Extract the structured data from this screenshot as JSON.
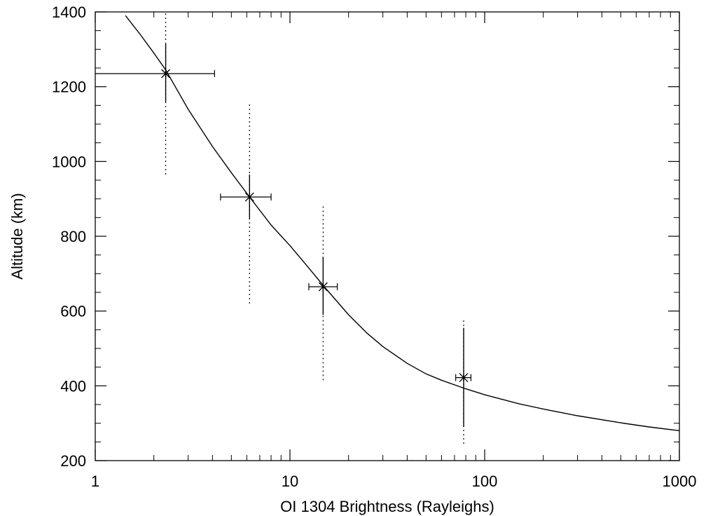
{
  "chart_data": {
    "type": "scatter",
    "title": "",
    "xlabel": "OI 1304 Brightness (Rayleighs)",
    "ylabel": "Altitude (km)",
    "xscale": "log",
    "xlim": [
      1,
      1000
    ],
    "ylim": [
      200,
      1400
    ],
    "grid": false,
    "x_ticks": [
      1,
      10,
      100,
      1000
    ],
    "x_tick_labels": [
      "1",
      "10",
      "100",
      "1000"
    ],
    "y_ticks": [
      200,
      400,
      600,
      800,
      1000,
      1200,
      1400
    ],
    "y_tick_labels": [
      "200",
      "400",
      "600",
      "800",
      "1000",
      "1200",
      "1400"
    ],
    "points": [
      {
        "x": 2.3,
        "y": 1235,
        "x_err_low": 1.0,
        "x_err_high": 4.1,
        "y_err_low": 1160,
        "y_err_high": 1315,
        "dotted_low": 965,
        "dotted_high": 1400
      },
      {
        "x": 6.2,
        "y": 905,
        "x_err_low": 4.4,
        "x_err_high": 8.0,
        "y_err_low": 845,
        "y_err_high": 965,
        "dotted_low": 620,
        "dotted_high": 1155
      },
      {
        "x": 14.8,
        "y": 665,
        "x_err_low": 12.5,
        "x_err_high": 17.5,
        "y_err_low": 590,
        "y_err_high": 745,
        "dotted_low": 415,
        "dotted_high": 880
      },
      {
        "x": 78,
        "y": 422,
        "x_err_low": 71,
        "x_err_high": 85,
        "y_err_low": 290,
        "y_err_high": 555,
        "dotted_low": 245,
        "dotted_high": 580
      }
    ],
    "fit_curve": [
      {
        "x": 1.43,
        "y": 1390
      },
      {
        "x": 1.7,
        "y": 1340
      },
      {
        "x": 2.0,
        "y": 1290
      },
      {
        "x": 2.3,
        "y": 1245
      },
      {
        "x": 3.0,
        "y": 1140
      },
      {
        "x": 4.0,
        "y": 1040
      },
      {
        "x": 5.0,
        "y": 970
      },
      {
        "x": 6.2,
        "y": 905
      },
      {
        "x": 8.0,
        "y": 830
      },
      {
        "x": 10.0,
        "y": 775
      },
      {
        "x": 12.5,
        "y": 715
      },
      {
        "x": 15.0,
        "y": 665
      },
      {
        "x": 20.0,
        "y": 590
      },
      {
        "x": 25.0,
        "y": 540
      },
      {
        "x": 30.0,
        "y": 505
      },
      {
        "x": 40.0,
        "y": 460
      },
      {
        "x": 50.0,
        "y": 432
      },
      {
        "x": 60.0,
        "y": 415
      },
      {
        "x": 80.0,
        "y": 392
      },
      {
        "x": 100.0,
        "y": 376
      },
      {
        "x": 150.0,
        "y": 352
      },
      {
        "x": 200.0,
        "y": 338
      },
      {
        "x": 300.0,
        "y": 320
      },
      {
        "x": 500.0,
        "y": 301
      },
      {
        "x": 700.0,
        "y": 290
      },
      {
        "x": 1000.0,
        "y": 280
      }
    ]
  }
}
